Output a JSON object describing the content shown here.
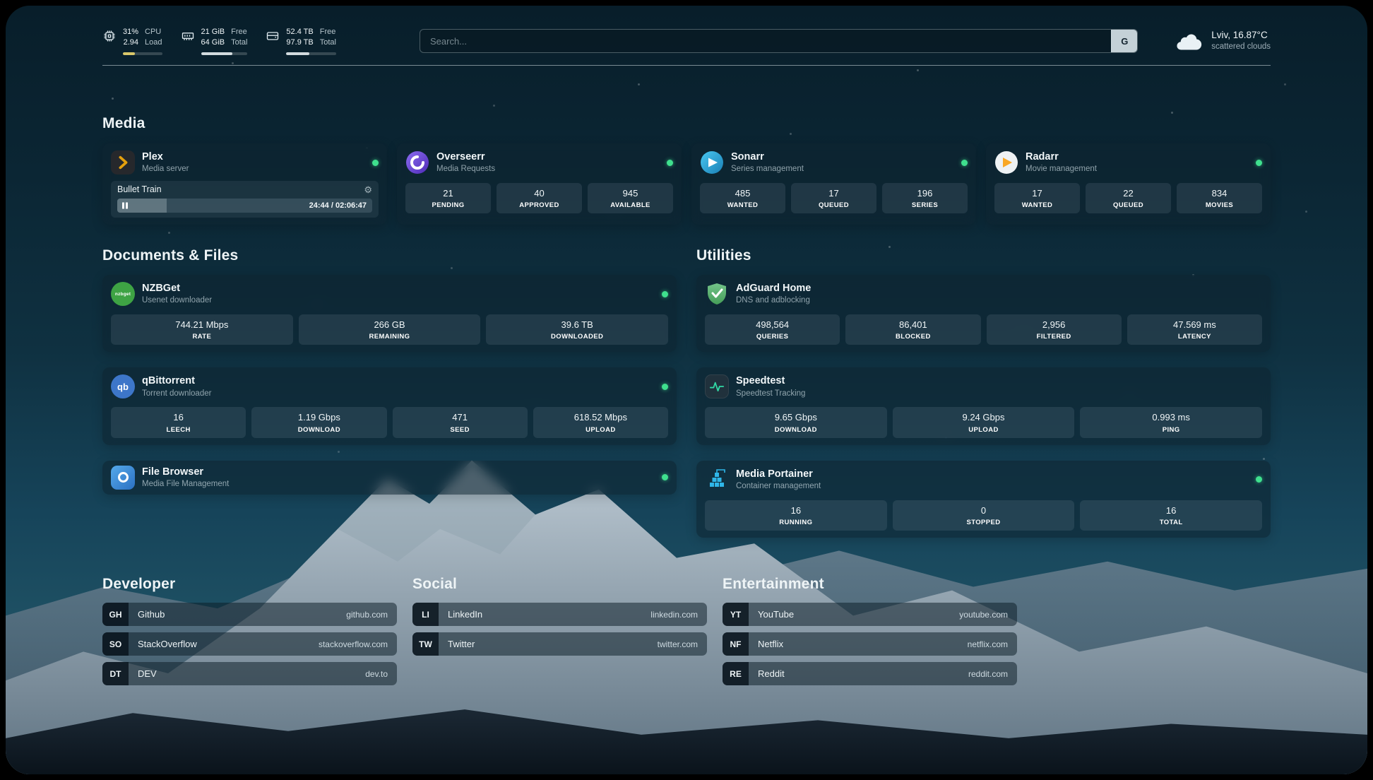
{
  "colors": {
    "status_dot": "#3fe08e",
    "cpu_bar": "#d9c76a",
    "ram_bar": "#d2dade",
    "disk_bar": "#d2dade"
  },
  "topbar": {
    "cpu": {
      "icon": "cpu-chip-icon",
      "top_value": "31%",
      "bottom_value": "2.94",
      "top_label": "CPU",
      "bottom_label": "Load",
      "percent": 31
    },
    "ram": {
      "icon": "memory-icon",
      "top_value": "21 GiB",
      "bottom_value": "64 GiB",
      "top_label": "Free",
      "bottom_label": "Total",
      "percent": 67
    },
    "disk": {
      "icon": "disk-icon",
      "top_value": "52.4 TB",
      "bottom_value": "97.9 TB",
      "top_label": "Free",
      "bottom_label": "Total",
      "percent": 46
    },
    "search": {
      "placeholder": "Search...",
      "button": "G"
    },
    "weather": {
      "icon": "cloud-icon",
      "location": "Lviv, 16.87°C",
      "condition": "scattered clouds"
    }
  },
  "sections": {
    "media": "Media",
    "documents": "Documents & Files",
    "utilities": "Utilities",
    "developer": "Developer",
    "social": "Social",
    "entertainment": "Entertainment"
  },
  "apps": {
    "plex": {
      "icon": "plex-chevron-icon",
      "name": "Plex",
      "subtitle": "Media server",
      "now_playing": "Bullet Train",
      "time": "24:44 / 02:06:47",
      "progress_percent": 19.5
    },
    "overseerr": {
      "icon": "overseerr-icon",
      "name": "Overseerr",
      "subtitle": "Media Requests",
      "stats": [
        {
          "value": "21",
          "label": "PENDING"
        },
        {
          "value": "40",
          "label": "APPROVED"
        },
        {
          "value": "945",
          "label": "AVAILABLE"
        }
      ]
    },
    "sonarr": {
      "icon": "sonarr-icon",
      "name": "Sonarr",
      "subtitle": "Series management",
      "stats": [
        {
          "value": "485",
          "label": "WANTED"
        },
        {
          "value": "17",
          "label": "QUEUED"
        },
        {
          "value": "196",
          "label": "SERIES"
        }
      ]
    },
    "radarr": {
      "icon": "radarr-icon",
      "name": "Radarr",
      "subtitle": "Movie management",
      "stats": [
        {
          "value": "17",
          "label": "WANTED"
        },
        {
          "value": "22",
          "label": "QUEUED"
        },
        {
          "value": "834",
          "label": "MOVIES"
        }
      ]
    },
    "nzbget": {
      "icon": "nzbget-icon",
      "name": "NZBGet",
      "subtitle": "Usenet downloader",
      "stats": [
        {
          "value": "744.21 Mbps",
          "label": "RATE"
        },
        {
          "value": "266 GB",
          "label": "REMAINING"
        },
        {
          "value": "39.6 TB",
          "label": "DOWNLOADED"
        }
      ]
    },
    "qbittorrent": {
      "icon": "qbittorrent-icon",
      "name": "qBittorrent",
      "subtitle": "Torrent downloader",
      "stats": [
        {
          "value": "16",
          "label": "LEECH"
        },
        {
          "value": "1.19 Gbps",
          "label": "DOWNLOAD"
        },
        {
          "value": "471",
          "label": "SEED"
        },
        {
          "value": "618.52 Mbps",
          "label": "UPLOAD"
        }
      ]
    },
    "filebrowser": {
      "icon": "filebrowser-icon",
      "name": "File Browser",
      "subtitle": "Media File Management"
    },
    "adguard": {
      "icon": "adguard-shield-icon",
      "name": "AdGuard Home",
      "subtitle": "DNS and adblocking",
      "stats": [
        {
          "value": "498,564",
          "label": "QUERIES"
        },
        {
          "value": "86,401",
          "label": "BLOCKED"
        },
        {
          "value": "2,956",
          "label": "FILTERED"
        },
        {
          "value": "47.569 ms",
          "label": "LATENCY"
        }
      ]
    },
    "speedtest": {
      "icon": "speedtest-pulse-icon",
      "name": "Speedtest",
      "subtitle": "Speedtest Tracking",
      "stats": [
        {
          "value": "9.65 Gbps",
          "label": "DOWNLOAD"
        },
        {
          "value": "9.24 Gbps",
          "label": "UPLOAD"
        },
        {
          "value": "0.993 ms",
          "label": "PING"
        }
      ]
    },
    "portainer": {
      "icon": "portainer-crane-icon",
      "name": "Media Portainer",
      "subtitle": "Container management",
      "stats": [
        {
          "value": "16",
          "label": "RUNNING"
        },
        {
          "value": "0",
          "label": "STOPPED"
        },
        {
          "value": "16",
          "label": "TOTAL"
        }
      ]
    }
  },
  "bookmarks": {
    "developer": [
      {
        "abbr": "GH",
        "name": "Github",
        "url": "github.com"
      },
      {
        "abbr": "SO",
        "name": "StackOverflow",
        "url": "stackoverflow.com"
      },
      {
        "abbr": "DT",
        "name": "DEV",
        "url": "dev.to"
      }
    ],
    "social": [
      {
        "abbr": "LI",
        "name": "LinkedIn",
        "url": "linkedin.com"
      },
      {
        "abbr": "TW",
        "name": "Twitter",
        "url": "twitter.com"
      }
    ],
    "entertainment": [
      {
        "abbr": "YT",
        "name": "YouTube",
        "url": "youtube.com"
      },
      {
        "abbr": "NF",
        "name": "Netflix",
        "url": "netflix.com"
      },
      {
        "abbr": "RE",
        "name": "Reddit",
        "url": "reddit.com"
      }
    ]
  }
}
